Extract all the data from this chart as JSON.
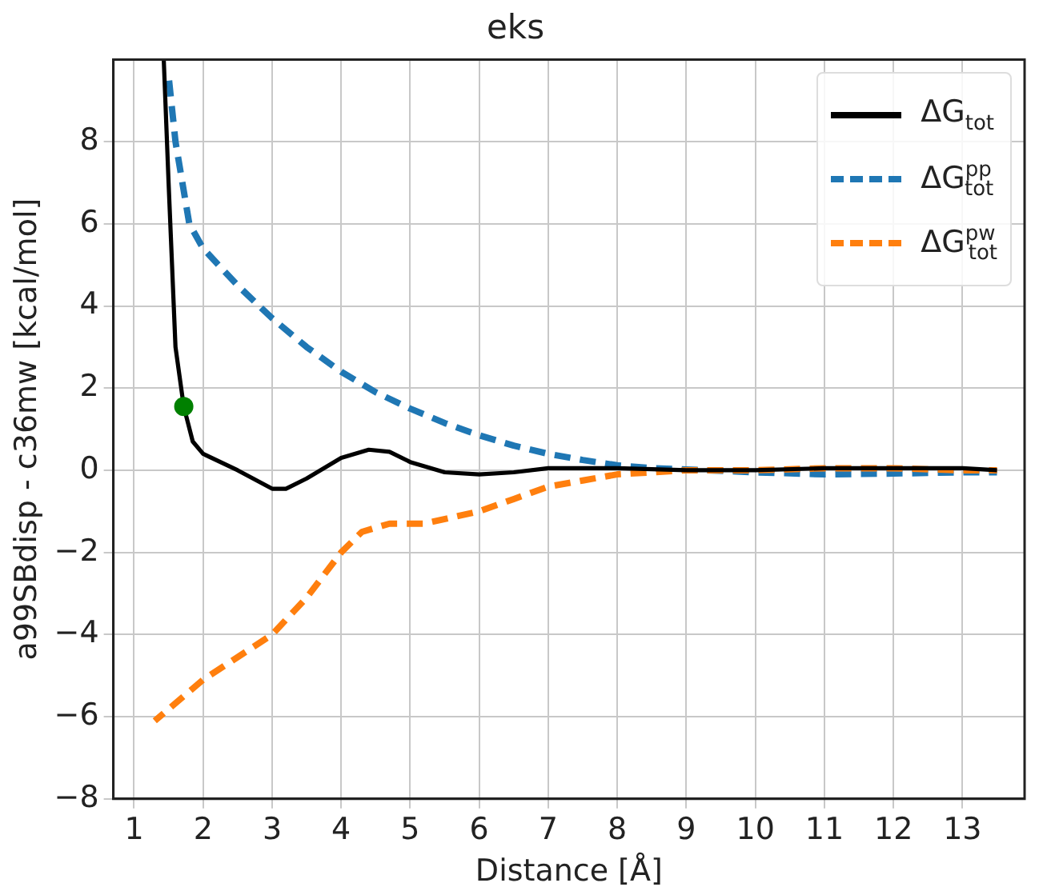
{
  "chart_data": {
    "type": "line",
    "title": "eks",
    "xlabel": "Distance [Å]",
    "ylabel": "a99SBdisp - c36mw [kcal/mol]",
    "xlim": [
      0.7,
      13.9
    ],
    "ylim": [
      -8,
      10
    ],
    "xticks": [
      1,
      2,
      3,
      4,
      5,
      6,
      7,
      8,
      9,
      10,
      11,
      12,
      13
    ],
    "yticks": [
      -8,
      -6,
      -4,
      -2,
      0,
      2,
      4,
      6,
      8
    ],
    "grid": true,
    "legend": "top right",
    "marker": "none",
    "series": [
      {
        "name": "ΔG$_{tot}$",
        "color": "#000000",
        "line_style": "solid",
        "x": [
          1.43,
          1.5,
          1.6,
          1.72,
          1.85,
          2,
          2.5,
          3,
          3.2,
          3.5,
          4,
          4.4,
          4.7,
          5,
          5.5,
          6,
          6.5,
          7,
          8,
          9,
          10,
          11,
          12,
          13,
          13.5
        ],
        "values": [
          10,
          7,
          3,
          1.55,
          0.7,
          0.4,
          0,
          -0.45,
          -0.45,
          -0.2,
          0.3,
          0.5,
          0.45,
          0.2,
          -0.05,
          -0.1,
          -0.05,
          0.05,
          0.05,
          0,
          0,
          0.05,
          0.05,
          0.05,
          0
        ]
      },
      {
        "name": "ΔG$^{pp}$$_{tot}$",
        "color": "#1f77b4",
        "line_style": "dashed",
        "x": [
          1.5,
          1.6,
          1.8,
          2,
          2.5,
          3,
          3.5,
          4,
          4.5,
          5,
          5.5,
          6,
          6.5,
          7,
          7.5,
          8,
          8.5,
          9,
          10,
          11,
          12,
          13,
          13.5
        ],
        "values": [
          9.6,
          8,
          6,
          5.4,
          4.5,
          3.7,
          3,
          2.4,
          1.9,
          1.5,
          1.15,
          0.85,
          0.6,
          0.4,
          0.25,
          0.12,
          0.05,
          0.02,
          -0.05,
          -0.1,
          -0.08,
          -0.05,
          -0.05
        ]
      },
      {
        "name": "ΔG$^{pw}$$_{tot}$",
        "color": "#ff7f0e",
        "line_style": "dashed",
        "x": [
          1.3,
          2,
          3,
          3.5,
          4,
          4.3,
          4.7,
          5.2,
          6,
          6.5,
          7,
          7.5,
          8,
          8.5,
          9,
          10,
          11,
          12,
          13,
          13.5
        ],
        "values": [
          -6.1,
          -5.1,
          -4,
          -3.1,
          -2,
          -1.5,
          -1.3,
          -1.3,
          -1,
          -0.7,
          -0.4,
          -0.25,
          -0.1,
          -0.05,
          0,
          0,
          0.05,
          0.05,
          0,
          0
        ]
      },
      {
        "type": "scatter",
        "color": "#008000",
        "marker": "circle",
        "x": [
          1.72
        ],
        "values": [
          1.55
        ]
      }
    ]
  }
}
